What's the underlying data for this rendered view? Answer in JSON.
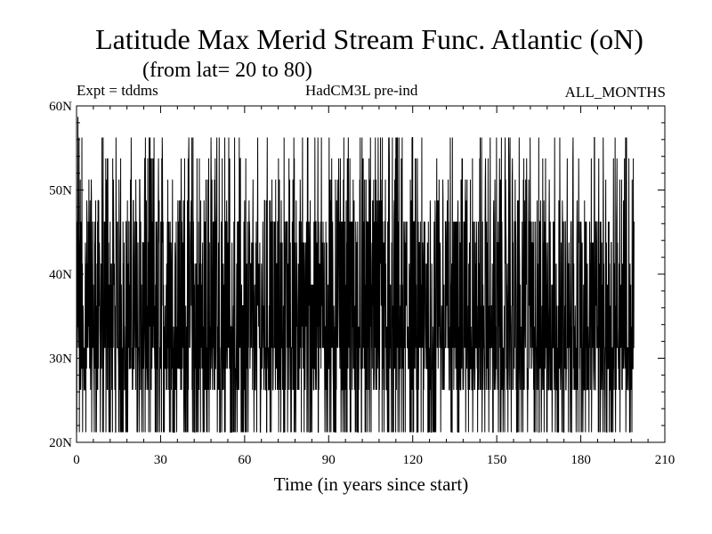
{
  "chart_data": {
    "type": "line",
    "title": "Latitude Max Merid Stream Func. Atlantic (oN)",
    "subtitle": "(from lat= 20 to 80)",
    "annotations": {
      "left": "Expt = tddms",
      "center": "HadCM3L pre-ind",
      "right": "ALL_MONTHS"
    },
    "xlabel": "Time (in years since start)",
    "ylabel": "",
    "xlim": [
      0,
      210
    ],
    "ylim": [
      20,
      60
    ],
    "x_ticks": [
      0,
      30,
      60,
      90,
      120,
      150,
      180,
      210
    ],
    "x_tick_labels": [
      "0",
      "30",
      "60",
      "90",
      "120",
      "150",
      "180",
      "210"
    ],
    "y_ticks": [
      20,
      30,
      40,
      50,
      60
    ],
    "y_tick_labels": [
      "20N",
      "30N",
      "40N",
      "50N",
      "60N"
    ],
    "grid": false,
    "series": [
      {
        "color": "#000000",
        "x_range": [
          0,
          199
        ],
        "samples_per_year": 12,
        "levels": [
          21.2,
          23.75,
          26.25,
          28.75,
          31.25,
          33.75,
          36.25,
          38.75,
          41.25,
          43.75,
          46.25,
          48.75,
          51.25,
          53.75,
          56.25
        ],
        "min": 21.2,
        "max": 58.7
      }
    ]
  }
}
